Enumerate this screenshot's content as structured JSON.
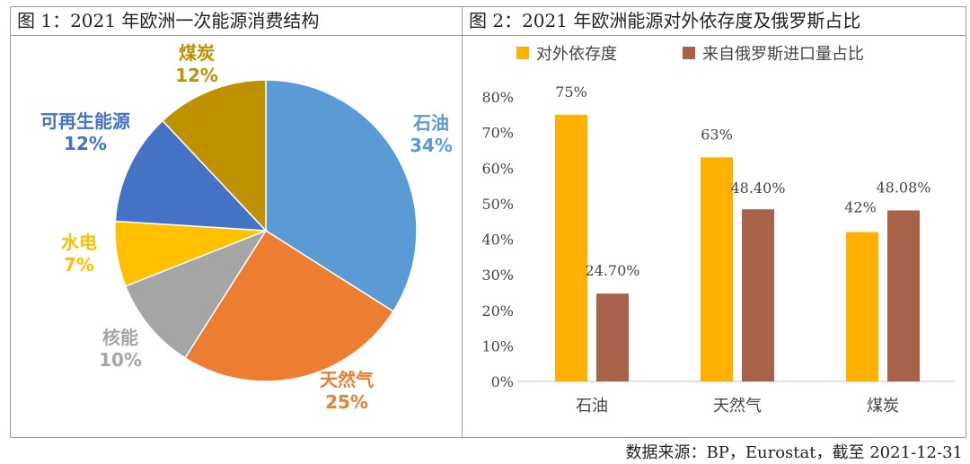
{
  "source": "数据来源：BP，Eurostat，截至 2021-12-31",
  "chart_data": [
    {
      "type": "pie",
      "title": "图 1：2021 年欧洲一次能源消费结构",
      "slices": [
        {
          "label": "石油",
          "value": 34,
          "value_label": "34%",
          "color": "#5b9bd5",
          "text_color": "#5b9bd5"
        },
        {
          "label": "天然气",
          "value": 25,
          "value_label": "25%",
          "color": "#ed7d31",
          "text_color": "#ed7d31"
        },
        {
          "label": "核能",
          "value": 10,
          "value_label": "10%",
          "color": "#a5a5a5",
          "text_color": "#a5a5a5"
        },
        {
          "label": "水电",
          "value": 7,
          "value_label": "7%",
          "color": "#ffc000",
          "text_color": "#ffc000"
        },
        {
          "label": "可再生能源",
          "value": 12,
          "value_label": "12%",
          "color": "#4472c4",
          "text_color": "#4472c4"
        },
        {
          "label": "煤炭",
          "value": 12,
          "value_label": "12%",
          "color": "#bf9000",
          "text_color": "#bf9000"
        }
      ]
    },
    {
      "type": "bar",
      "title": "图 2：2021 年欧洲能源对外依存度及俄罗斯占比",
      "categories": [
        "石油",
        "天然气",
        "煤炭"
      ],
      "series": [
        {
          "name": "对外依存度",
          "values": [
            75,
            63,
            42
          ],
          "value_labels": [
            "75%",
            "63%",
            "42%"
          ],
          "color": "#ffb000"
        },
        {
          "name": "来自俄罗斯进口量占比",
          "values": [
            24.7,
            48.4,
            48.08
          ],
          "value_labels": [
            "24.70%",
            "48.40%",
            "48.08%"
          ],
          "color": "#a9624a"
        }
      ],
      "ylim": [
        0,
        80
      ],
      "yticks": [
        0,
        10,
        20,
        30,
        40,
        50,
        60,
        70,
        80
      ],
      "ytick_labels": [
        "0%",
        "10%",
        "20%",
        "30%",
        "40%",
        "50%",
        "60%",
        "70%",
        "80%"
      ],
      "legend": "top-left"
    }
  ]
}
